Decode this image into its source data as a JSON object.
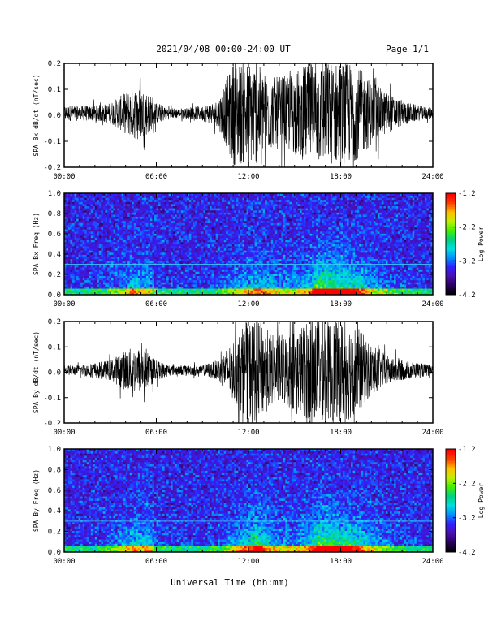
{
  "header": {
    "title": "2021/04/08  00:00-24:00 UT",
    "page_label": "Page 1/1"
  },
  "xlabel": "Universal Time (hh:mm)",
  "x_ticks": [
    "00:00",
    "06:00",
    "12:00",
    "18:00",
    "24:00"
  ],
  "x_range_hours": [
    0,
    24
  ],
  "colormap": [
    "#000000",
    "#2a0060",
    "#4b10b0",
    "#3020ff",
    "#0090ff",
    "#00e0e0",
    "#00d080",
    "#40f000",
    "#c0f000",
    "#ffc000",
    "#ff4000",
    "#ff0000"
  ],
  "chart_data": [
    {
      "type": "line",
      "ylabel": "SPA Bx dB/dt (nT/sec)",
      "ylim": [
        -0.2,
        0.2
      ],
      "y_ticks": [
        "0.2",
        "0.1",
        "0.0",
        "-0.1",
        "-0.2"
      ],
      "x_hours": [
        0,
        1,
        2,
        3,
        3.5,
        4,
        4.5,
        5,
        5.5,
        6,
        7,
        8,
        9,
        10,
        10.5,
        11,
        11.5,
        12,
        12.5,
        13,
        13.5,
        14,
        14.5,
        15,
        15.5,
        16,
        16.5,
        17,
        17.5,
        18,
        18.5,
        19,
        19.5,
        20,
        21,
        22,
        23,
        24
      ],
      "envelope": [
        0.03,
        0.03,
        0.03,
        0.04,
        0.06,
        0.08,
        0.1,
        0.1,
        0.08,
        0.04,
        0.02,
        0.02,
        0.03,
        0.05,
        0.12,
        0.2,
        0.2,
        0.2,
        0.2,
        0.16,
        0.14,
        0.14,
        0.15,
        0.16,
        0.18,
        0.2,
        0.2,
        0.2,
        0.2,
        0.2,
        0.2,
        0.18,
        0.16,
        0.12,
        0.08,
        0.05,
        0.03,
        0.02
      ]
    },
    {
      "type": "heatmap",
      "ylabel": "SPA Bx Freq (Hz)",
      "ylim": [
        0,
        1.0
      ],
      "y_ticks": [
        "1.0",
        "0.8",
        "0.6",
        "0.4",
        "0.2",
        "0.0"
      ],
      "colorbar": {
        "label": "Log Power",
        "ticks": [
          "-1.2",
          "-2.2",
          "-3.2",
          "-4.2"
        ],
        "range": [
          -4.2,
          -1.2
        ]
      },
      "x_hours": [
        0,
        2,
        4,
        4.5,
        5,
        5.5,
        6,
        8,
        10,
        11,
        12,
        13,
        14,
        15,
        16,
        16.5,
        17,
        18,
        19,
        20,
        22,
        24
      ],
      "activity": [
        0.05,
        0.05,
        0.3,
        0.55,
        0.35,
        0.4,
        0.1,
        0.05,
        0.1,
        0.3,
        0.45,
        0.5,
        0.35,
        0.35,
        0.5,
        0.95,
        1.0,
        0.85,
        0.7,
        0.35,
        0.1,
        0.05
      ]
    },
    {
      "type": "line",
      "ylabel": "SPA By dB/dt (nT/sec)",
      "ylim": [
        -0.2,
        0.2
      ],
      "y_ticks": [
        "0.2",
        "0.1",
        "0.0",
        "-0.1",
        "-0.2"
      ],
      "x_hours": [
        0,
        1,
        2,
        3,
        3.5,
        4,
        4.5,
        5,
        5.5,
        6,
        7,
        8,
        9,
        10,
        10.5,
        11,
        11.5,
        12,
        12.5,
        13,
        13.5,
        14,
        14.5,
        15,
        15.5,
        16,
        16.5,
        17,
        17.5,
        18,
        18.5,
        19,
        19.5,
        20,
        21,
        22,
        23,
        24
      ],
      "envelope": [
        0.02,
        0.02,
        0.03,
        0.04,
        0.06,
        0.08,
        0.09,
        0.09,
        0.07,
        0.04,
        0.02,
        0.02,
        0.02,
        0.04,
        0.08,
        0.12,
        0.16,
        0.2,
        0.2,
        0.18,
        0.14,
        0.14,
        0.15,
        0.16,
        0.18,
        0.2,
        0.2,
        0.2,
        0.2,
        0.2,
        0.2,
        0.18,
        0.14,
        0.1,
        0.06,
        0.04,
        0.03,
        0.02
      ]
    },
    {
      "type": "heatmap",
      "ylabel": "SPA By Freq (Hz)",
      "ylim": [
        0,
        1.0
      ],
      "y_ticks": [
        "1.0",
        "0.8",
        "0.6",
        "0.4",
        "0.2",
        "0.0"
      ],
      "colorbar": {
        "label": "Log Power",
        "ticks": [
          "-1.2",
          "-2.2",
          "-3.2",
          "-4.2"
        ],
        "range": [
          -4.2,
          -1.2
        ]
      },
      "x_hours": [
        0,
        2,
        4,
        4.5,
        5,
        5.5,
        6,
        8,
        10,
        11,
        12,
        12.5,
        13,
        14,
        15,
        16,
        16.5,
        17,
        18,
        19,
        20,
        22,
        24
      ],
      "activity": [
        0.05,
        0.05,
        0.35,
        0.55,
        0.45,
        0.5,
        0.1,
        0.05,
        0.1,
        0.35,
        0.6,
        0.9,
        0.6,
        0.35,
        0.35,
        0.5,
        0.9,
        1.0,
        0.85,
        0.7,
        0.35,
        0.1,
        0.05
      ]
    }
  ]
}
